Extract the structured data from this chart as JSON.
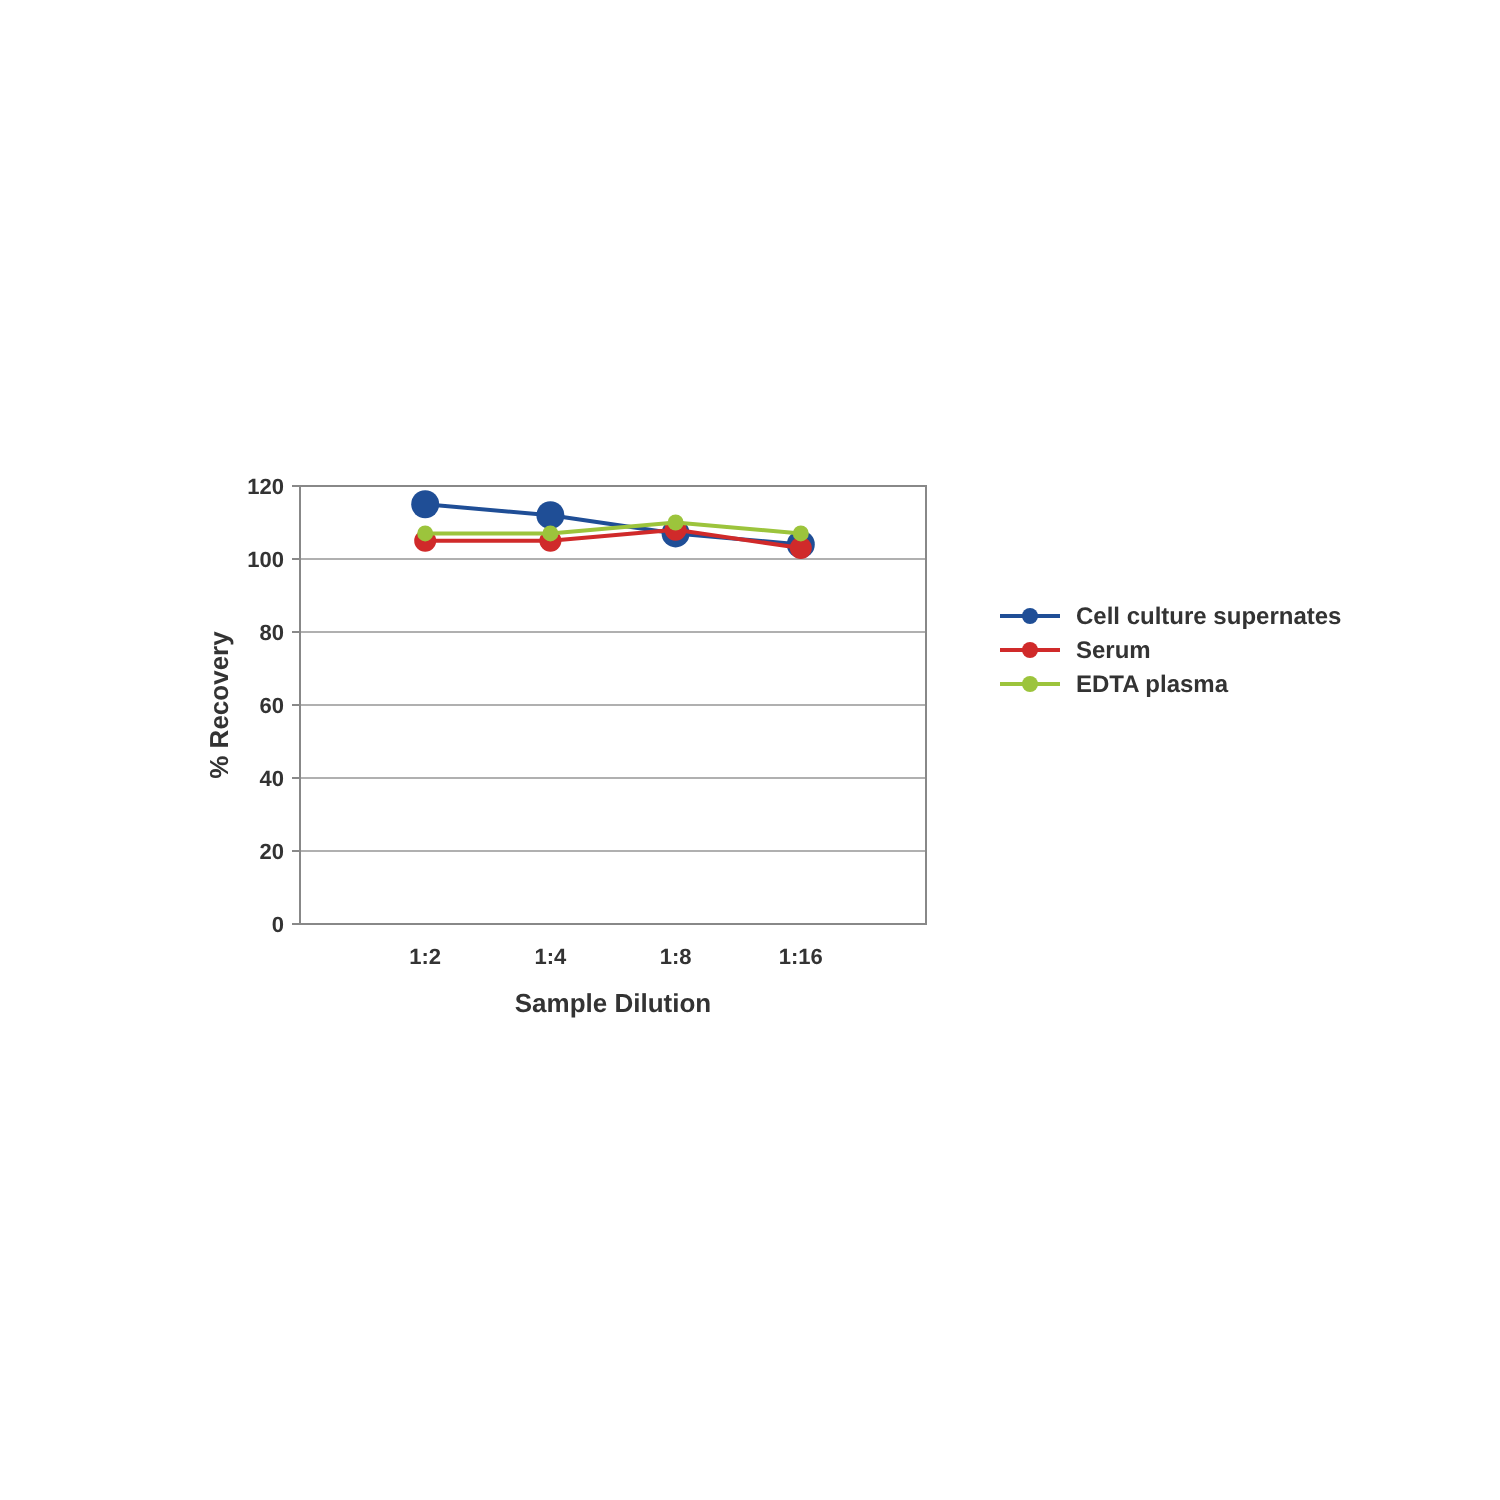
{
  "chart_data": {
    "type": "line",
    "xlabel": "Sample Dilution",
    "ylabel": "% Recovery",
    "categories": [
      "1:2",
      "1:4",
      "1:8",
      "1:16"
    ],
    "series": [
      {
        "name": "Cell culture supernates",
        "color": "#1f4e96",
        "values": [
          115,
          112,
          107,
          104
        ]
      },
      {
        "name": "Serum",
        "color": "#d02a2a",
        "values": [
          105,
          105,
          108,
          103
        ]
      },
      {
        "name": "EDTA plasma",
        "color": "#9cc43c",
        "values": [
          107,
          107,
          110,
          107
        ]
      }
    ],
    "ylim": [
      0,
      120
    ],
    "yticks": [
      0,
      20,
      40,
      60,
      80,
      100,
      120
    ],
    "grid": "y",
    "legend": "right",
    "marker": "circle",
    "line_style": "solid"
  }
}
